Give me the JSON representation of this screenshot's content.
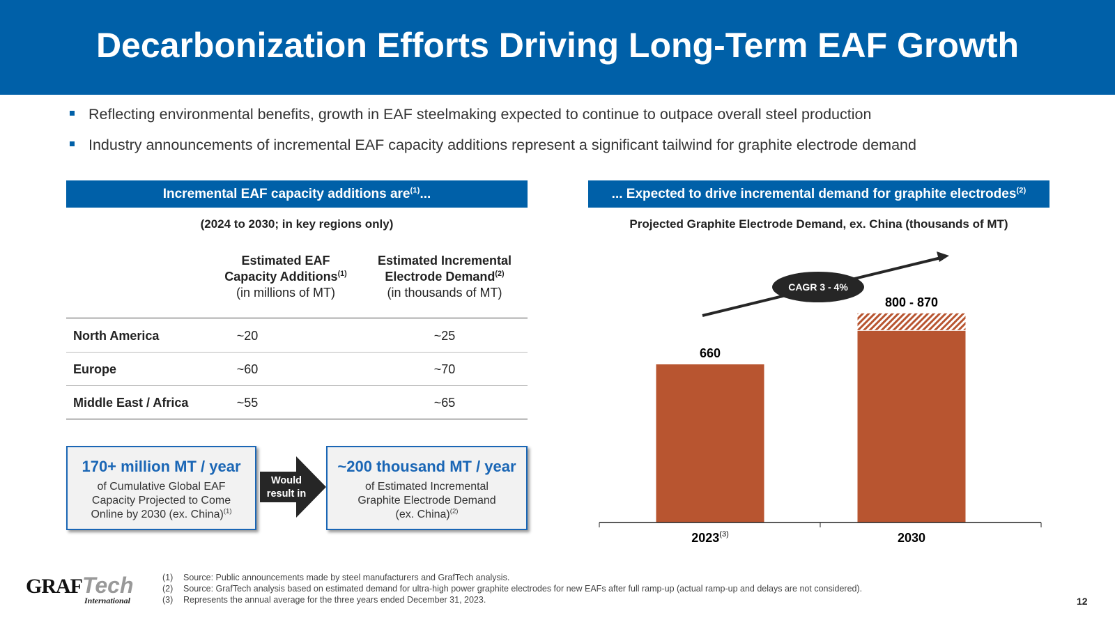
{
  "title": "Decarbonization Efforts Driving Long-Term EAF Growth",
  "bullets": [
    "Reflecting environmental benefits, growth in EAF steelmaking expected to continue to outpace overall steel production",
    "Industry announcements of incremental EAF capacity additions represent a significant tailwind for graphite electrode demand"
  ],
  "left": {
    "banner": "Incremental EAF capacity additions are",
    "banner_sup": "(1)",
    "banner_tail": "...",
    "subtitle": "(2024 to 2030; in key regions only)",
    "col1": {
      "l1": "Estimated EAF",
      "l2": "Capacity Additions",
      "sup": "(1)",
      "unit": "(in millions of MT)"
    },
    "col2": {
      "l1": "Estimated Incremental",
      "l2": "Electrode Demand",
      "sup": "(2)",
      "unit": "(in thousands of MT)"
    },
    "rows": [
      {
        "region": "North America",
        "cap": "~20",
        "demand": "~25"
      },
      {
        "region": "Europe",
        "cap": "~60",
        "demand": "~70"
      },
      {
        "region": "Middle East / Africa",
        "cap": "~55",
        "demand": "~65"
      }
    ],
    "box1": {
      "big": "170+ million MT / year",
      "l1": "of Cumulative Global EAF",
      "l2": "Capacity Projected to Come",
      "l3": "Online by 2030 (ex. China)",
      "sup": "(1)"
    },
    "arrow": {
      "l1": "Would",
      "l2": "result in"
    },
    "box2": {
      "big": "~200 thousand MT / year",
      "l1": "of Estimated Incremental",
      "l2": "Graphite Electrode Demand",
      "l3": "(ex. China)",
      "sup": "(2)"
    }
  },
  "right": {
    "banner": "... Expected to drive incremental demand for graphite electrodes",
    "banner_sup": "(2)"
  },
  "chart_data": {
    "type": "bar",
    "title": "Projected Graphite Electrode Demand, ex. China (thousands of MT)",
    "categories": [
      "2023",
      "2030"
    ],
    "category_sups": [
      "(3)",
      ""
    ],
    "values": [
      660,
      800
    ],
    "range_high": [
      null,
      870
    ],
    "data_labels": [
      "660",
      "800 - 870"
    ],
    "annotation": "CAGR 3 - 4%",
    "bar_color": "#b85530",
    "ylim": [
      0,
      1000
    ],
    "grid": false
  },
  "footnotes": [
    {
      "n": "(1)",
      "t": "Source: Public announcements made by steel manufacturers and GrafTech analysis."
    },
    {
      "n": "(2)",
      "t": "Source: GrafTech analysis based on estimated demand for ultra-high power graphite electrodes for new EAFs after full ramp-up (actual ramp-up and delays are not considered)."
    },
    {
      "n": "(3)",
      "t": "Represents the annual average for the three years ended December 31, 2023."
    }
  ],
  "logo": {
    "a": "GRAF",
    "b": "Tech",
    "c": "International"
  },
  "page": "12"
}
